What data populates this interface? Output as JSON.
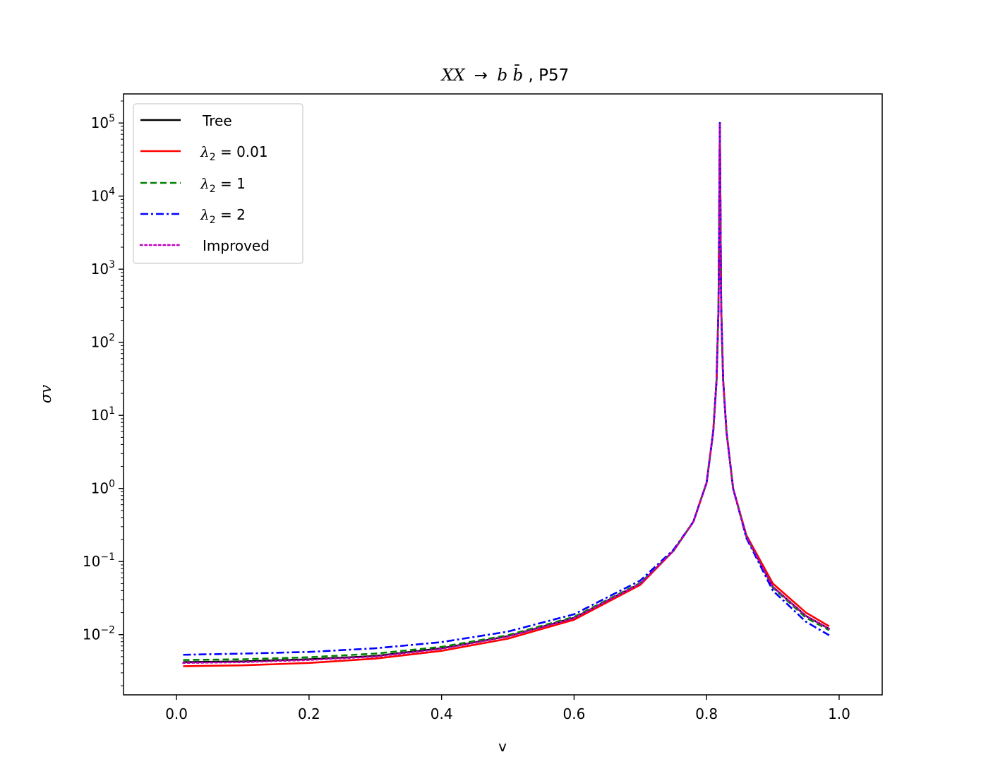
{
  "chart_data": {
    "type": "line",
    "title": "XX → bb̄, P57",
    "title_parts": {
      "process_lhs": "XX",
      "arrow": "→",
      "process_rhs": "b",
      "rhs_bar": "b̄",
      "suffix": ", P57"
    },
    "xlabel": "v",
    "ylabel": "σv",
    "yscale": "log",
    "xlim": [
      -0.08,
      1.065
    ],
    "ylim": [
      0.0015,
      250000
    ],
    "x_ticks": [
      0.0,
      0.2,
      0.4,
      0.6,
      0.8,
      1.0
    ],
    "x_tick_labels": [
      "0.0",
      "0.2",
      "0.4",
      "0.6",
      "0.8",
      "1.0"
    ],
    "y_ticks": [
      0.01,
      0.1,
      1,
      10,
      100,
      1000,
      10000,
      100000
    ],
    "y_tick_labels": [
      {
        "base": "10",
        "exp": "−2"
      },
      {
        "base": "10",
        "exp": "−1"
      },
      {
        "base": "10",
        "exp": "0"
      },
      {
        "base": "10",
        "exp": "1"
      },
      {
        "base": "10",
        "exp": "2"
      },
      {
        "base": "10",
        "exp": "3"
      },
      {
        "base": "10",
        "exp": "4"
      },
      {
        "base": "10",
        "exp": "5"
      }
    ],
    "grid": false,
    "legend_position": "upper-left",
    "series": [
      {
        "name": "Tree",
        "color": "#000000",
        "style": "solid",
        "x": [
          0.01,
          0.1,
          0.2,
          0.3,
          0.4,
          0.5,
          0.6,
          0.7,
          0.75,
          0.78,
          0.8,
          0.81,
          0.815,
          0.818,
          0.82,
          0.822,
          0.825,
          0.83,
          0.84,
          0.86,
          0.9,
          0.95,
          0.985
        ],
        "y": [
          0.0042,
          0.0043,
          0.0046,
          0.0051,
          0.0065,
          0.0095,
          0.017,
          0.05,
          0.14,
          0.35,
          1.2,
          6,
          30,
          300,
          100000,
          300,
          30,
          6,
          1.0,
          0.22,
          0.045,
          0.018,
          0.012
        ]
      },
      {
        "name": "λ₂ = 0.01",
        "label_parts": {
          "symbol": "λ",
          "sub": "2",
          "rest": " = 0.01"
        },
        "color": "#ff0000",
        "style": "solid",
        "x": [
          0.01,
          0.1,
          0.2,
          0.3,
          0.4,
          0.5,
          0.6,
          0.7,
          0.75,
          0.78,
          0.8,
          0.81,
          0.815,
          0.818,
          0.82,
          0.822,
          0.825,
          0.83,
          0.84,
          0.86,
          0.9,
          0.95,
          0.985
        ],
        "y": [
          0.0037,
          0.0038,
          0.0041,
          0.0047,
          0.006,
          0.0088,
          0.016,
          0.048,
          0.14,
          0.35,
          1.2,
          6,
          30,
          300,
          100000,
          300,
          30,
          6,
          1.0,
          0.23,
          0.05,
          0.02,
          0.013
        ]
      },
      {
        "name": "λ₂ = 1",
        "label_parts": {
          "symbol": "λ",
          "sub": "2",
          "rest": " = 1"
        },
        "color": "#008000",
        "style": "dashed",
        "x": [
          0.01,
          0.1,
          0.2,
          0.3,
          0.4,
          0.5,
          0.6,
          0.7,
          0.75,
          0.78,
          0.8,
          0.81,
          0.815,
          0.818,
          0.82,
          0.822,
          0.825,
          0.83,
          0.84,
          0.86,
          0.9,
          0.95,
          0.985
        ],
        "y": [
          0.0045,
          0.0046,
          0.0049,
          0.0055,
          0.0068,
          0.0098,
          0.0175,
          0.051,
          0.14,
          0.35,
          1.2,
          6,
          30,
          300,
          100000,
          300,
          30,
          6,
          1.0,
          0.22,
          0.044,
          0.017,
          0.0115
        ]
      },
      {
        "name": "λ₂ = 2",
        "label_parts": {
          "symbol": "λ",
          "sub": "2",
          "rest": " = 2"
        },
        "color": "#0000ff",
        "style": "dashdot",
        "x": [
          0.01,
          0.1,
          0.2,
          0.3,
          0.4,
          0.5,
          0.6,
          0.7,
          0.75,
          0.78,
          0.8,
          0.81,
          0.815,
          0.818,
          0.82,
          0.822,
          0.825,
          0.83,
          0.84,
          0.86,
          0.9,
          0.95,
          0.985
        ],
        "y": [
          0.0053,
          0.0055,
          0.0058,
          0.0065,
          0.0079,
          0.011,
          0.019,
          0.055,
          0.145,
          0.35,
          1.2,
          6,
          30,
          300,
          100000,
          300,
          30,
          6,
          1.0,
          0.21,
          0.04,
          0.015,
          0.0098
        ]
      },
      {
        "name": "Improved",
        "color": "#bf00bf",
        "style": "dotted",
        "x": [
          0.01,
          0.1,
          0.2,
          0.3,
          0.4,
          0.5,
          0.6,
          0.7,
          0.75,
          0.78,
          0.8,
          0.81,
          0.815,
          0.818,
          0.82,
          0.822,
          0.825,
          0.83,
          0.84,
          0.86,
          0.9,
          0.95,
          0.985
        ],
        "y": [
          0.0041,
          0.0042,
          0.0045,
          0.005,
          0.0064,
          0.0094,
          0.0168,
          0.05,
          0.14,
          0.35,
          1.2,
          6,
          30,
          300,
          100000,
          300,
          30,
          6,
          1.0,
          0.22,
          0.045,
          0.018,
          0.012
        ]
      }
    ]
  }
}
